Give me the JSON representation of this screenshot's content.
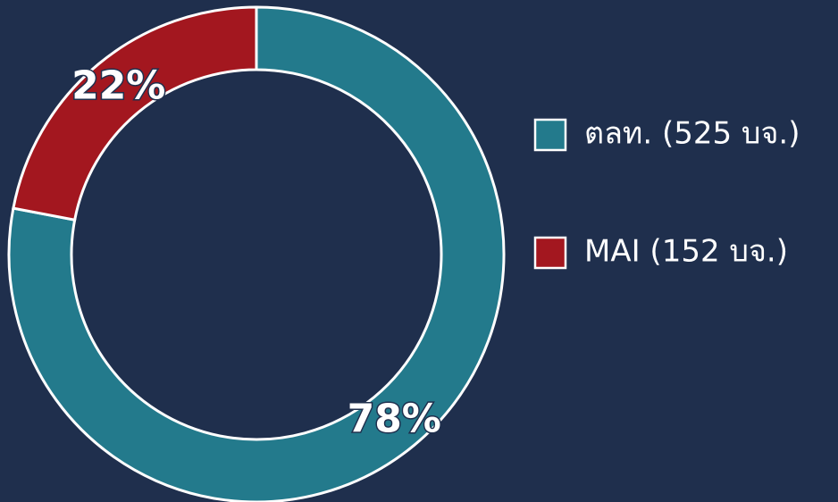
{
  "chart_data": {
    "type": "donut",
    "categories": [
      "ตลท. (525 บจ.)",
      "MAI (152 บจ.)"
    ],
    "values": [
      78,
      22
    ],
    "value_labels": [
      "78%",
      "22%"
    ],
    "colors": [
      "#237a8c",
      "#a3171f"
    ],
    "legend": "right"
  }
}
